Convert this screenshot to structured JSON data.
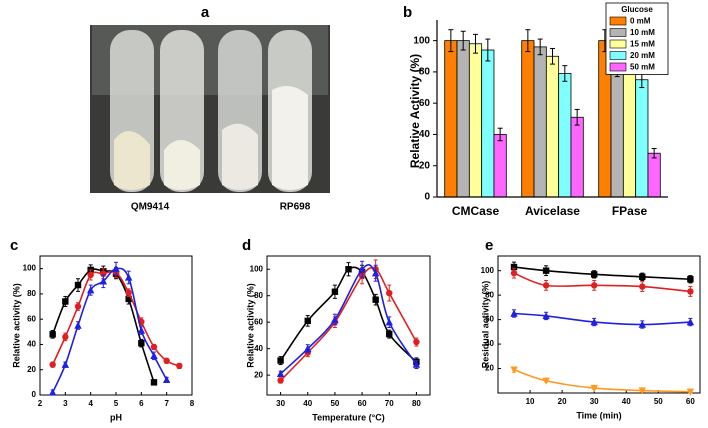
{
  "photo_panel": {
    "panel": "a",
    "captions": [
      "QM9414",
      "RP698"
    ]
  },
  "chart_data": [
    {
      "type": "bar",
      "panel": "b",
      "y_label": "Relative Activity (%)",
      "categories": [
        "CMCase",
        "Avicelase",
        "FPase"
      ],
      "legend_title": "Glucose",
      "legend": "upper right",
      "series": [
        {
          "name": "0 mM",
          "color": "#ff7f00",
          "values": [
            100,
            100,
            100
          ],
          "errors": [
            7,
            7,
            7
          ]
        },
        {
          "name": "10 mM",
          "color": "#b4b4b4",
          "values": [
            100,
            96,
            82
          ],
          "errors": [
            6,
            5,
            5
          ]
        },
        {
          "name": "15 mM",
          "color": "#ffff99",
          "values": [
            98,
            90,
            94
          ],
          "errors": [
            6,
            5,
            6
          ]
        },
        {
          "name": "20 mM",
          "color": "#80ffff",
          "values": [
            94,
            79,
            75
          ],
          "errors": [
            7,
            5,
            5
          ]
        },
        {
          "name": "50 mM",
          "color": "#ff66ff",
          "values": [
            40,
            51,
            28
          ],
          "errors": [
            4,
            5,
            3
          ]
        }
      ],
      "ylim": [
        0,
        110
      ],
      "yticks": [
        0,
        20,
        40,
        60,
        80,
        100
      ]
    },
    {
      "type": "line",
      "panel": "c",
      "x_label": "pH",
      "y_label": "Relative activity (%)",
      "series": [
        {
          "color": "#000000",
          "marker": "square",
          "x": [
            2.5,
            3,
            3.5,
            4,
            4.5,
            5,
            5.5,
            6,
            6.5
          ],
          "values": [
            48,
            74,
            87,
            99,
            98,
            96,
            76,
            41,
            10
          ],
          "errors": [
            3,
            4,
            5,
            4,
            4,
            4,
            4,
            3,
            2
          ]
        },
        {
          "color": "#e02020",
          "marker": "circle",
          "x": [
            2.5,
            3,
            3.5,
            4,
            4.5,
            5,
            5.5,
            6,
            6.5,
            7,
            7.5
          ],
          "values": [
            24,
            46,
            70,
            95,
            96,
            97,
            81,
            58,
            38,
            27,
            23
          ],
          "errors": [
            2,
            3,
            3,
            4,
            4,
            4,
            3,
            3,
            2,
            2,
            2
          ]
        },
        {
          "color": "#2020e0",
          "marker": "triangle",
          "x": [
            2.5,
            3,
            3.5,
            4,
            4.5,
            5,
            5.5,
            6,
            6.5,
            7
          ],
          "values": [
            2,
            24,
            55,
            83,
            90,
            100,
            93,
            51,
            31,
            12
          ],
          "errors": [
            2,
            2,
            3,
            4,
            5,
            5,
            5,
            3,
            3,
            2
          ]
        }
      ],
      "xlim": [
        2,
        8
      ],
      "xticks": [
        2,
        3,
        4,
        5,
        6,
        7,
        8
      ],
      "ylim": [
        0,
        110
      ],
      "yticks": [
        0,
        20,
        40,
        60,
        80,
        100
      ]
    },
    {
      "type": "line",
      "panel": "d",
      "x_label": "Temperature (°C)",
      "y_label": "Relative activity (%)",
      "series": [
        {
          "color": "#000000",
          "marker": "square",
          "x": [
            30,
            40,
            50,
            55,
            60,
            65,
            70,
            80
          ],
          "values": [
            31,
            61,
            83,
            100,
            98,
            77,
            51,
            30
          ],
          "errors": [
            3,
            4,
            5,
            5,
            5,
            4,
            3,
            3
          ]
        },
        {
          "color": "#e02020",
          "marker": "circle",
          "x": [
            30,
            40,
            50,
            60,
            65,
            70,
            80
          ],
          "values": [
            16,
            37,
            60,
            95,
            100,
            82,
            45
          ],
          "errors": [
            2,
            3,
            4,
            6,
            7,
            6,
            3
          ]
        },
        {
          "color": "#2020e0",
          "marker": "triangle",
          "x": [
            30,
            40,
            50,
            60,
            65,
            70,
            80
          ],
          "values": [
            21,
            40,
            62,
            100,
            97,
            60,
            28
          ],
          "errors": [
            2,
            3,
            4,
            6,
            6,
            4,
            3
          ]
        }
      ],
      "xlim": [
        25,
        85
      ],
      "xticks": [
        30,
        40,
        50,
        60,
        70,
        80
      ],
      "ylim": [
        5,
        110
      ],
      "yticks": [
        20,
        40,
        60,
        80,
        100
      ]
    },
    {
      "type": "line",
      "panel": "e",
      "x_label": "Time (min)",
      "y_label": "Residual activity (%)",
      "series": [
        {
          "color": "#000000",
          "marker": "square",
          "x": [
            5,
            15,
            30,
            45,
            60
          ],
          "values": [
            103,
            100,
            97,
            95,
            93
          ],
          "errors": [
            4,
            4,
            3,
            3,
            3
          ]
        },
        {
          "color": "#e02020",
          "marker": "circle",
          "x": [
            5,
            15,
            30,
            45,
            60
          ],
          "values": [
            98,
            88,
            88,
            87,
            83
          ],
          "errors": [
            4,
            4,
            4,
            4,
            4
          ]
        },
        {
          "color": "#2020e0",
          "marker": "triangle",
          "x": [
            5,
            15,
            30,
            45,
            60
          ],
          "values": [
            65,
            63,
            58,
            56,
            58
          ],
          "errors": [
            3,
            3,
            3,
            3,
            3
          ]
        },
        {
          "color": "#ff9a1f",
          "marker": "down-triangle",
          "x": [
            5,
            15,
            30,
            45,
            60
          ],
          "values": [
            19,
            10,
            4,
            2,
            1
          ],
          "errors": [
            2,
            1,
            1,
            1,
            1
          ]
        }
      ],
      "xlim": [
        0,
        63
      ],
      "xticks": [
        10,
        20,
        30,
        40,
        50,
        60
      ],
      "ylim": [
        0,
        112
      ],
      "yticks": [
        20,
        40,
        60,
        80,
        100
      ]
    }
  ]
}
